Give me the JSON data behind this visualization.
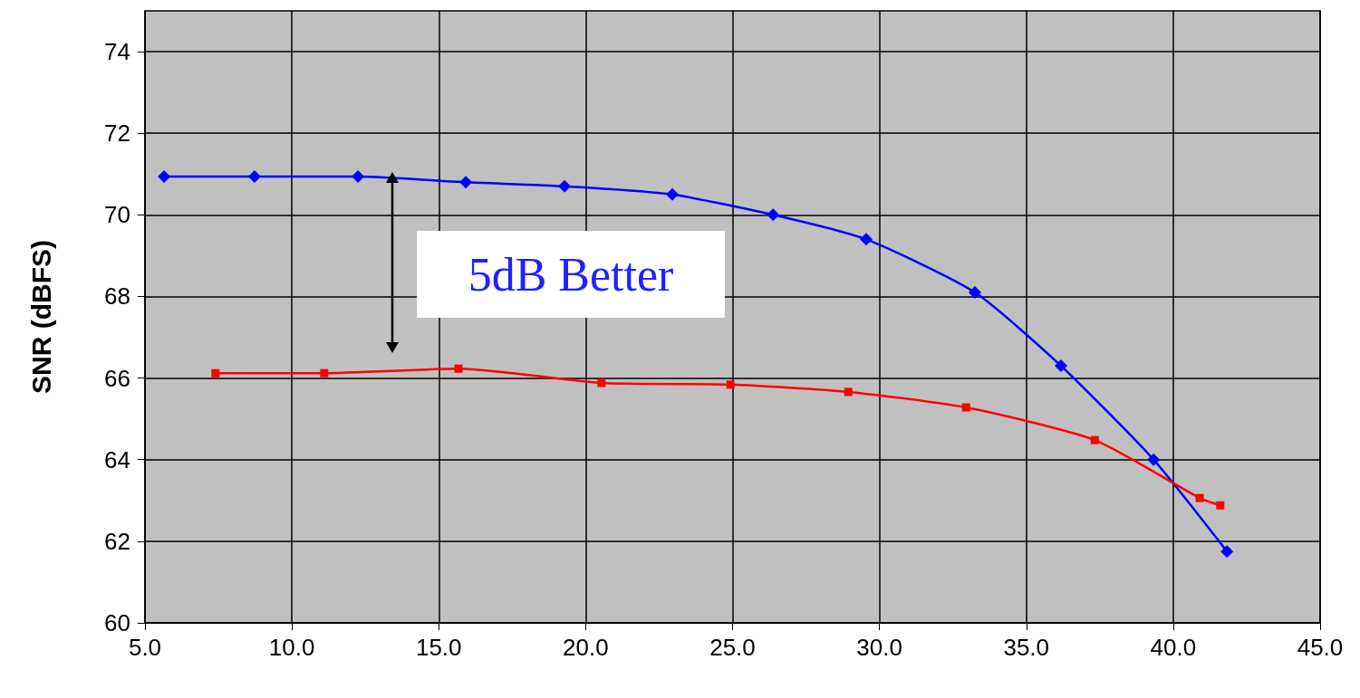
{
  "chart_data": {
    "type": "line",
    "ylabel": "SNR (dBFS)",
    "xlim": [
      5,
      45
    ],
    "xticks": [
      {
        "value": 5,
        "label": "5.0"
      },
      {
        "value": 10,
        "label": "10.0"
      },
      {
        "value": 15,
        "label": "15.0"
      },
      {
        "value": 20,
        "label": "20.0"
      },
      {
        "value": 25,
        "label": "25.0"
      },
      {
        "value": 30,
        "label": "30.0"
      },
      {
        "value": 35,
        "label": "35.0"
      },
      {
        "value": 40,
        "label": "40.0"
      },
      {
        "value": 45,
        "label": "45.0"
      }
    ],
    "ylim": [
      60,
      75
    ],
    "yticks": [
      60,
      62,
      64,
      66,
      68,
      70,
      72,
      74
    ],
    "grid": true,
    "line_style": "solid",
    "series": [
      {
        "color": "#0000ff",
        "marker": "diamond",
        "x": [
          5.65,
          8.73,
          12.25,
          15.92,
          19.28,
          22.95,
          26.38,
          29.55,
          33.25,
          36.18,
          39.33,
          41.83
        ],
        "values": [
          70.94,
          70.94,
          70.94,
          70.8,
          70.7,
          70.5,
          70.0,
          69.4,
          68.1,
          66.3,
          64.0,
          61.75
        ]
      },
      {
        "color": "#ff0000",
        "marker": "square",
        "x": [
          7.4,
          11.1,
          15.67,
          20.54,
          24.93,
          28.94,
          32.95,
          37.33,
          40.9,
          41.6
        ],
        "values": [
          66.12,
          66.12,
          66.23,
          65.88,
          65.84,
          65.66,
          65.28,
          64.48,
          63.06,
          62.88
        ]
      }
    ],
    "annotations": [
      "5dB Better"
    ]
  }
}
